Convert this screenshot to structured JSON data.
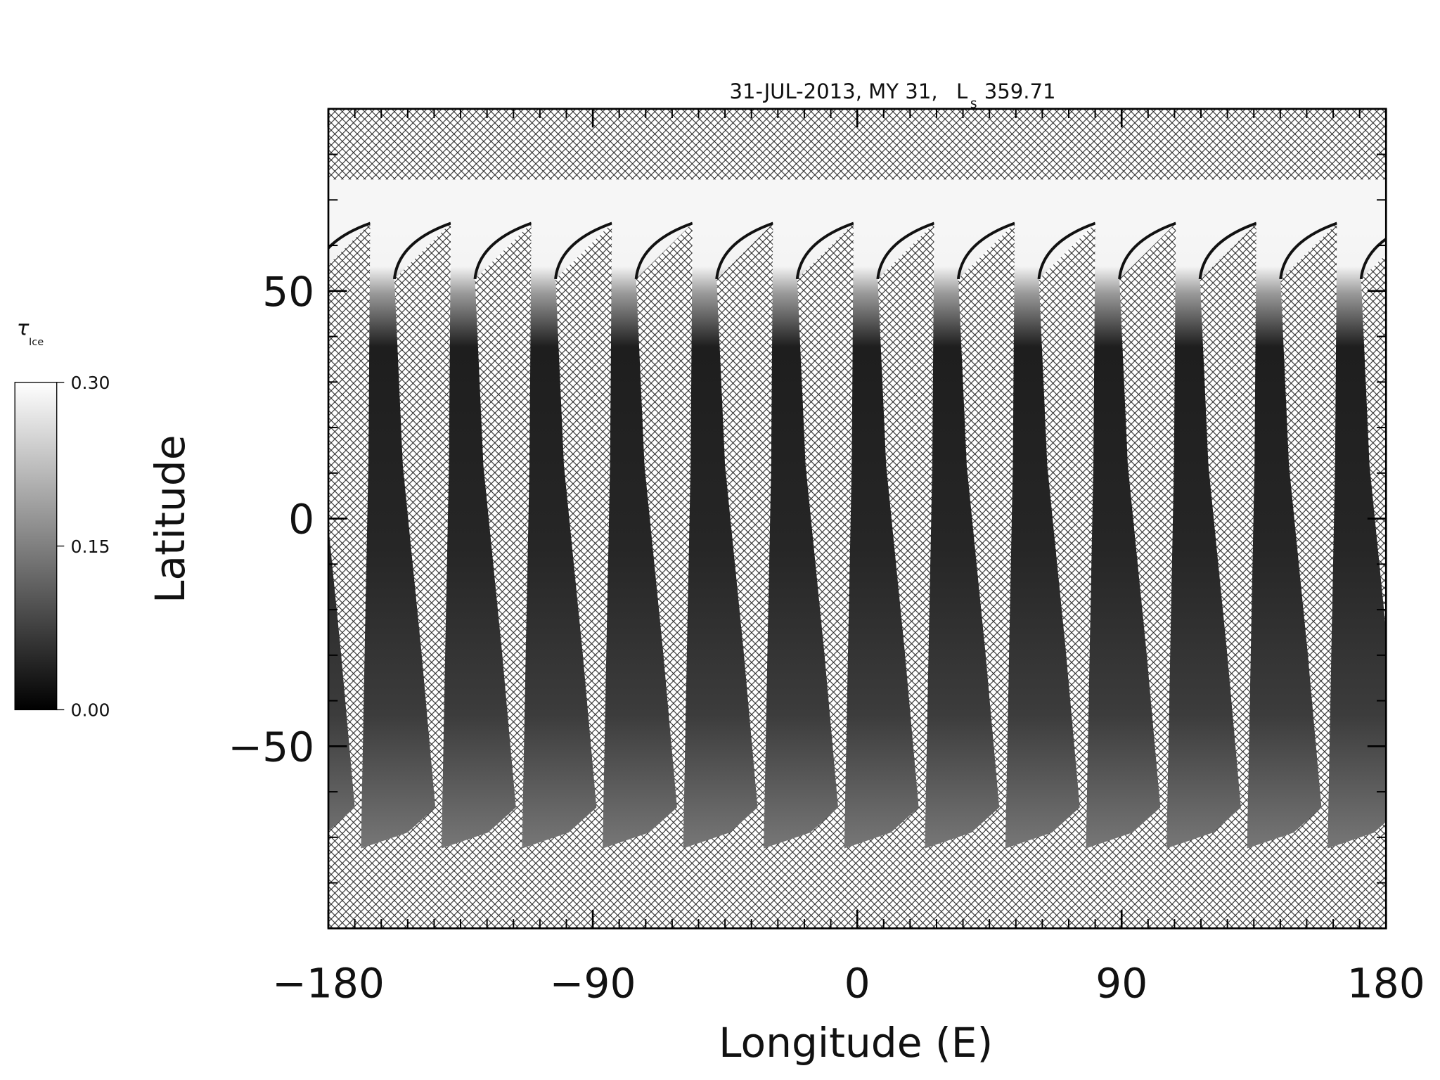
{
  "chart_data": {
    "type": "map",
    "title": "31-JUL-2013, MY 31,",
    "title_symbol": "L",
    "title_symbol_subscript": "s",
    "title_value": "359.71",
    "x_label": "Longitude (E)",
    "y_label": "Latitude",
    "xlim": [
      -180,
      180
    ],
    "ylim": [
      -90,
      90
    ],
    "xticks": [
      {
        "value": -180,
        "label": "−180"
      },
      {
        "value": -90,
        "label": "−90"
      },
      0,
      90,
      180
    ],
    "yticks": [
      {
        "value": -50,
        "label": "−50"
      },
      0,
      50
    ],
    "xminorticks": [
      -180,
      -171,
      -162,
      -153,
      -144,
      -135,
      -126,
      -117,
      -108,
      -99,
      -90,
      -81,
      -72,
      -63,
      -54,
      -45,
      -36,
      -27,
      -18,
      -9,
      0,
      9,
      18,
      27,
      36,
      45,
      54,
      63,
      72,
      81,
      90,
      99,
      108,
      117,
      126,
      135,
      144,
      153,
      162,
      171,
      180
    ],
    "yminorticks": [
      -90,
      -80,
      -70,
      -60,
      -50,
      -40,
      -30,
      -20,
      -10,
      0,
      10,
      20,
      30,
      40,
      50,
      60,
      70,
      80,
      90
    ],
    "colorbar": {
      "label": "τ",
      "label_subscript": "Ice",
      "clim": [
        0,
        0.3
      ],
      "ticks": [
        {
          "value": 0,
          "label": "0.00"
        },
        {
          "value": 0.15,
          "label": "0.15"
        },
        {
          "value": 0.3,
          "label": "0.30"
        }
      ],
      "colors": [
        "#000000",
        "#ffffff"
      ]
    }
  }
}
